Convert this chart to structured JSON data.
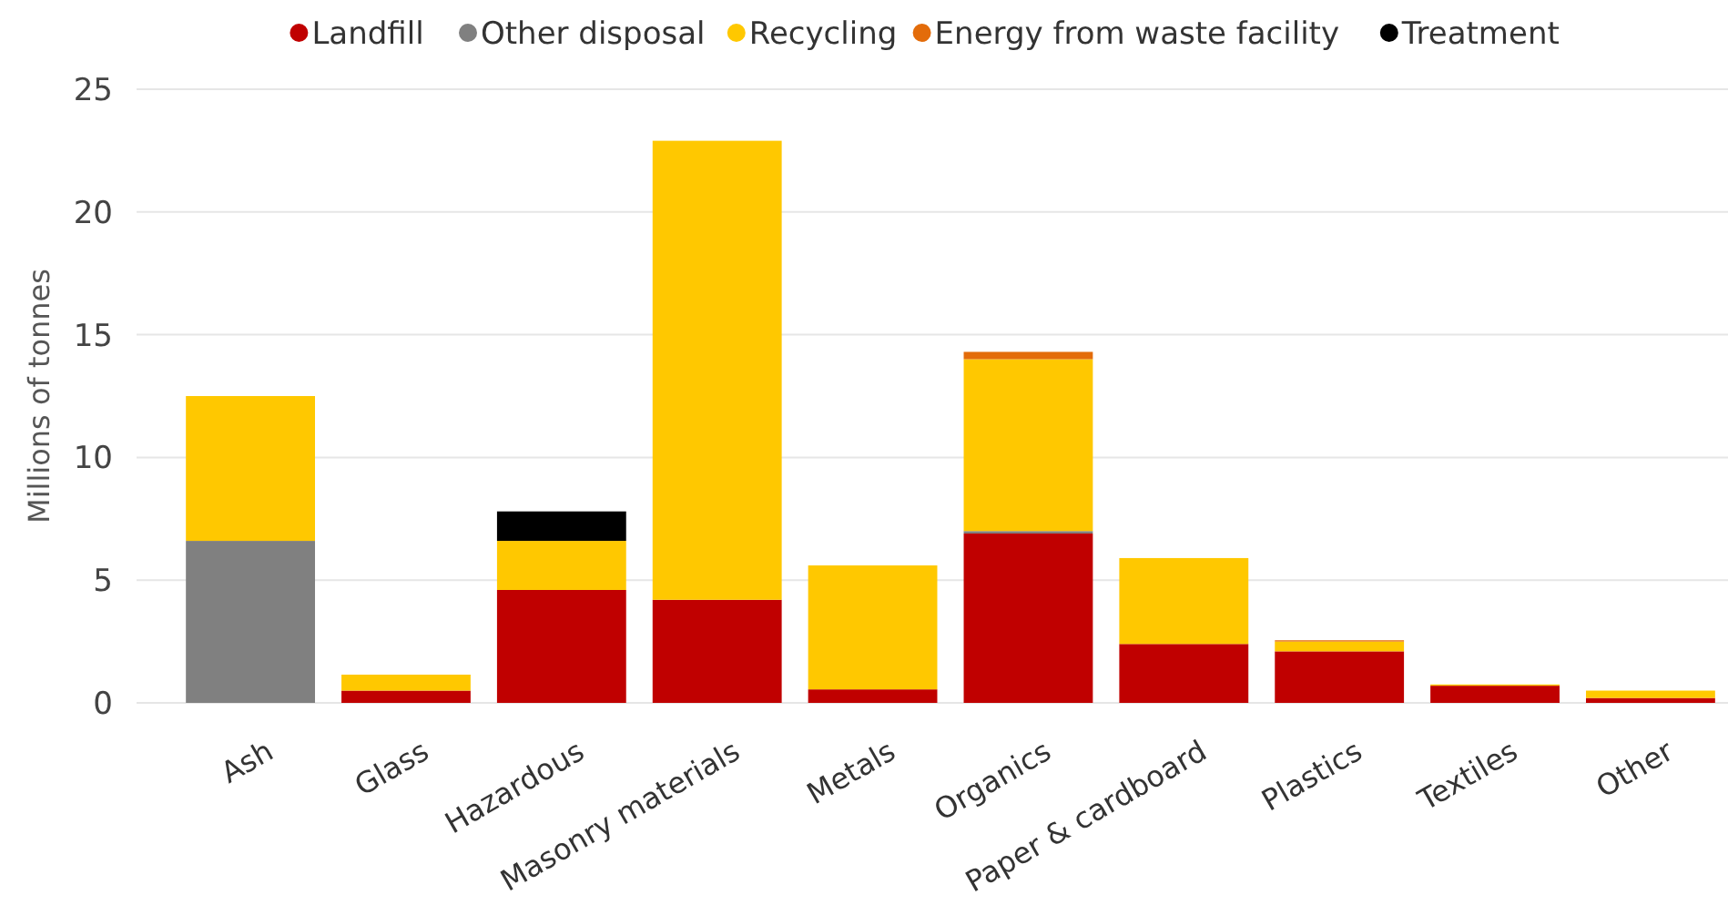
{
  "chart_data": {
    "type": "bar",
    "stacked": true,
    "ylabel": "Millions of tonnes",
    "categories": [
      "Ash",
      "Glass",
      "Hazardous",
      "Masonry materials",
      "Metals",
      "Organics",
      "Paper & cardboard",
      "Plastics",
      "Textiles",
      "Other"
    ],
    "series": [
      {
        "name": "Landfill",
        "color": "#c00000",
        "values": [
          null,
          0.5,
          4.6,
          4.2,
          0.55,
          6.9,
          2.4,
          2.1,
          0.7,
          0.2
        ]
      },
      {
        "name": "Other disposal",
        "color": "#808080",
        "values": [
          6.6,
          null,
          null,
          null,
          null,
          0.1,
          null,
          null,
          null,
          null
        ]
      },
      {
        "name": "Recycling",
        "color": "#ffc800",
        "values": [
          5.9,
          0.65,
          2.0,
          18.7,
          5.05,
          7.0,
          3.5,
          0.4,
          0.05,
          0.3
        ]
      },
      {
        "name": "Energy from waste facility",
        "color": "#e36c0a",
        "values": [
          null,
          null,
          null,
          null,
          null,
          0.3,
          null,
          0.05,
          null,
          null
        ]
      },
      {
        "name": "Treatment",
        "color": "#000000",
        "values": [
          null,
          null,
          1.2,
          null,
          null,
          null,
          null,
          null,
          null,
          null
        ]
      }
    ],
    "ylim": [
      0,
      25
    ],
    "yticks": [
      0,
      5,
      10,
      15,
      20,
      25
    ],
    "grid": "y",
    "legend": "top",
    "marker": "circle"
  }
}
